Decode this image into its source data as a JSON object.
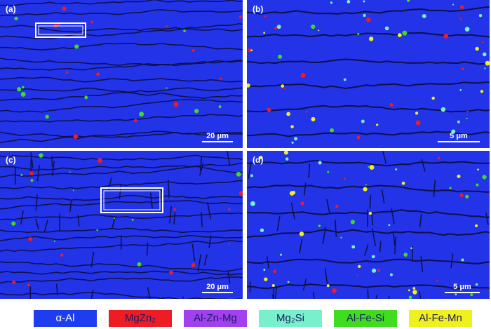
{
  "panels": [
    {
      "label": "(a)",
      "scale_bar": "20 μm"
    },
    {
      "label": "(b)",
      "scale_bar": "5 μm"
    },
    {
      "label": "(c)",
      "scale_bar": "20 μm"
    },
    {
      "label": "(d)",
      "scale_bar": "5 μm"
    }
  ],
  "legend": [
    "α-Al",
    "MgZn₂",
    "Al-Zn-Mg",
    "Mg₂Si",
    "Al-Fe-Si",
    "Al-Fe-Mn"
  ]
}
